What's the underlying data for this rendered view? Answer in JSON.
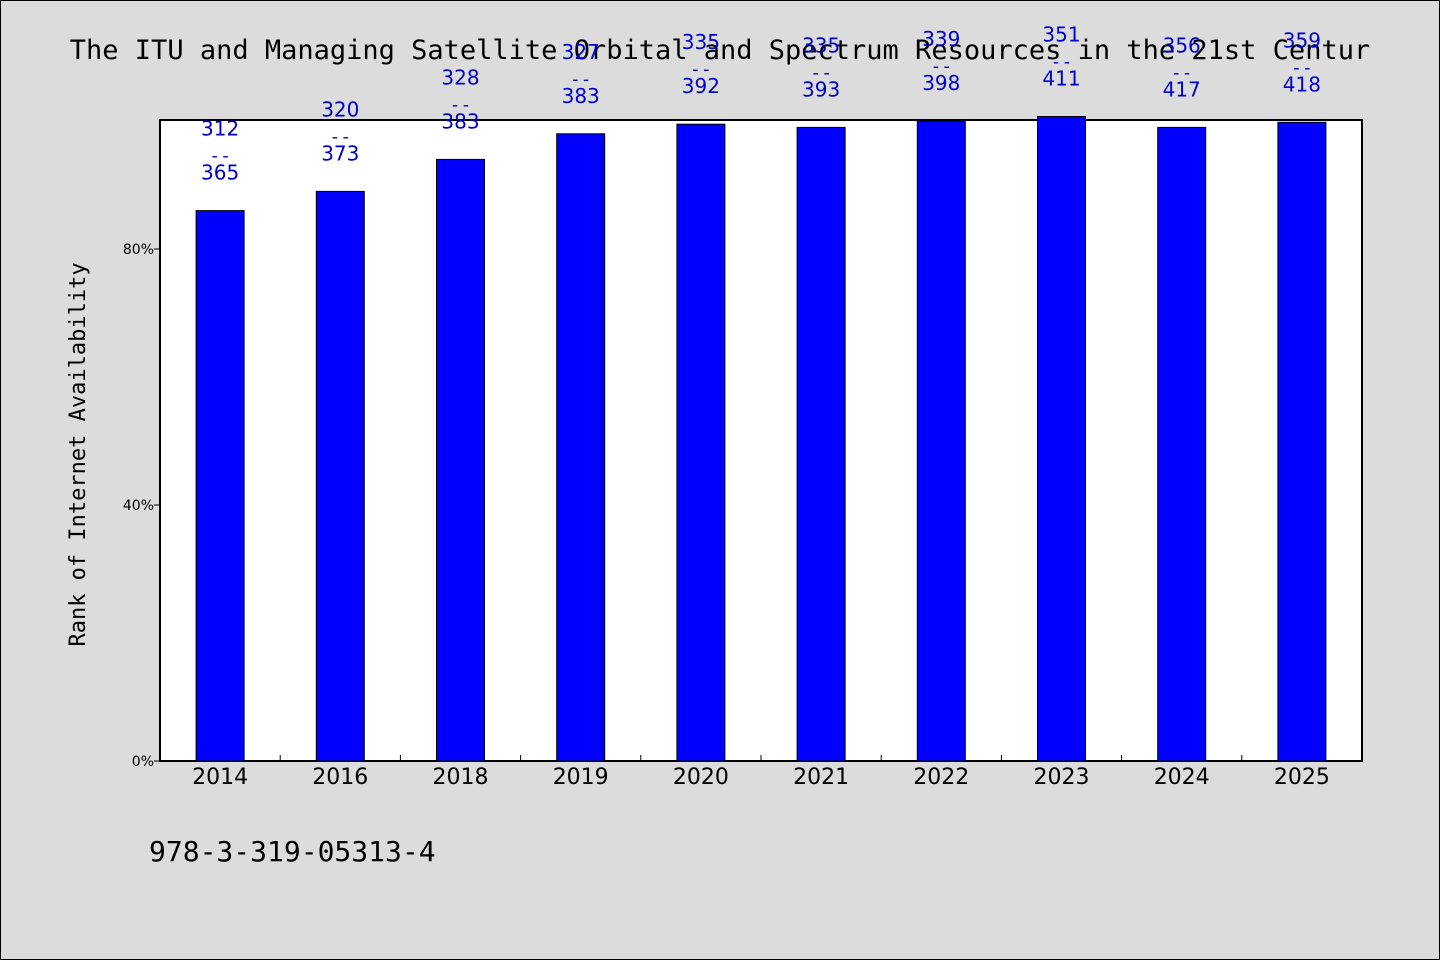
{
  "chart_data": {
    "type": "bar",
    "title": "The ITU and Managing Satellite Orbital and Spectrum Resources in the 21st Centur",
    "ylabel": "Rank of Internet Availability",
    "xlabel": "",
    "categories": [
      "2014",
      "2016",
      "2018",
      "2019",
      "2020",
      "2021",
      "2022",
      "2023",
      "2024",
      "2025"
    ],
    "values": [
      0.86,
      0.89,
      0.94,
      0.98,
      0.995,
      0.99,
      1.0,
      1.007,
      0.99,
      0.998
    ],
    "bar_labels": [
      {
        "top": "312",
        "sep": "--",
        "bottom": "365"
      },
      {
        "top": "320",
        "sep": "--",
        "bottom": "373"
      },
      {
        "top": "328",
        "sep": "--",
        "bottom": "383"
      },
      {
        "top": "327",
        "sep": "--",
        "bottom": "383"
      },
      {
        "top": "335",
        "sep": "--",
        "bottom": "392"
      },
      {
        "top": "335",
        "sep": "--",
        "bottom": "393"
      },
      {
        "top": "339",
        "sep": "--",
        "bottom": "398"
      },
      {
        "top": "351",
        "sep": "--",
        "bottom": "411"
      },
      {
        "top": "356",
        "sep": "--",
        "bottom": "417"
      },
      {
        "top": "359",
        "sep": "--",
        "bottom": "418"
      }
    ],
    "y_ticks": [
      {
        "value": 0,
        "label": "0%"
      },
      {
        "value": 0.4,
        "label": "40%"
      },
      {
        "value": 0.8,
        "label": "80%"
      }
    ],
    "ylim": [
      0,
      1.0
    ],
    "grid": false,
    "colors": {
      "bar": "#0000ff",
      "bar_label": "#0000cc",
      "background": "#dcdcdc",
      "plot_area": "#ffffff"
    }
  },
  "footer": {
    "isbn": "978-3-319-05313-4"
  }
}
